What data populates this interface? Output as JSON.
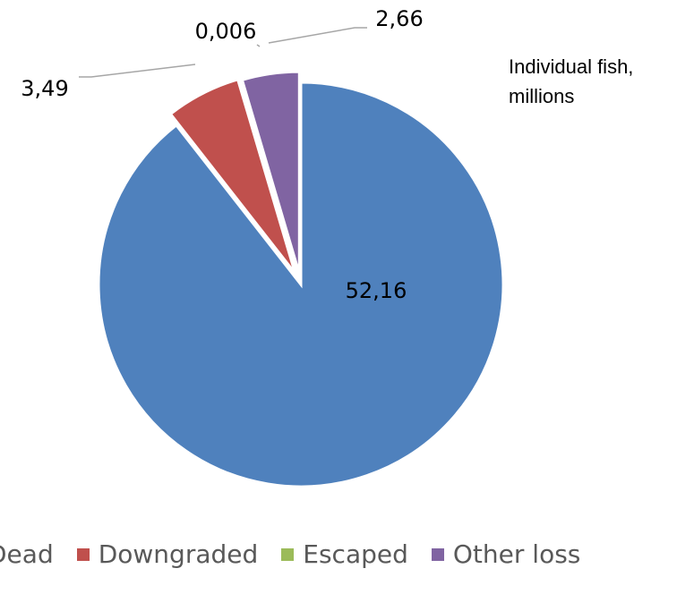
{
  "note": [
    "Individual fish,",
    "millions"
  ],
  "chart_data": {
    "type": "pie",
    "slices": [
      {
        "name": "Dead",
        "value": 52.16,
        "label": "52,16",
        "color": "#4F81BD"
      },
      {
        "name": "Downgraded",
        "value": 3.49,
        "label": "3,49",
        "color": "#C0504D"
      },
      {
        "name": "Escaped",
        "value": 0.006,
        "label": "0,006",
        "color": "#9BBB59"
      },
      {
        "name": "Other loss",
        "value": 2.66,
        "label": "2,66",
        "color": "#8064A2"
      }
    ],
    "legend": [
      "Dead",
      "Downgraded",
      "Escaped",
      "Other loss"
    ],
    "legend_position": "bottom"
  }
}
